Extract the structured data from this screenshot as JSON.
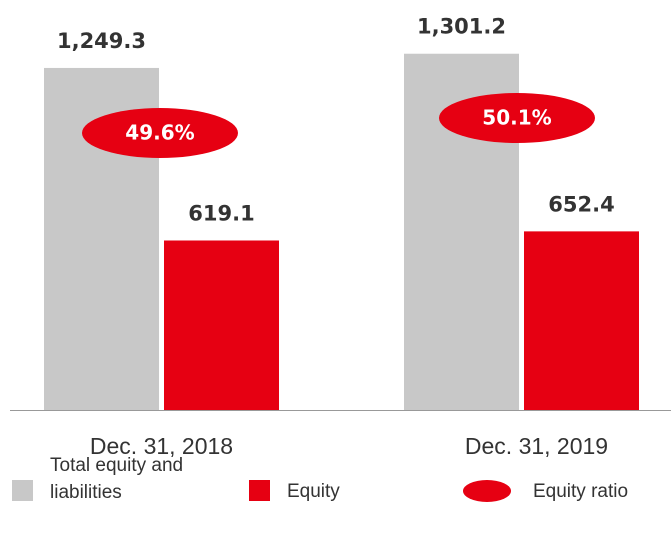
{
  "chart_data": {
    "type": "bar",
    "categories": [
      "Dec. 31, 2018",
      "Dec. 31, 2019"
    ],
    "series": [
      {
        "name": "Total equity and liabilities",
        "color": "#c8c8c8",
        "values": [
          1249.3,
          1301.2
        ],
        "value_labels": [
          "1,249.3",
          "1,301.2"
        ]
      },
      {
        "name": "Equity",
        "color": "#e60012",
        "values": [
          619.1,
          652.4
        ]
      }
    ],
    "ratio": {
      "name": "Equity ratio",
      "color": "#e60012",
      "values": [
        49.6,
        50.1
      ],
      "value_labels": [
        "49.6%",
        "50.1%"
      ]
    }
  }
}
